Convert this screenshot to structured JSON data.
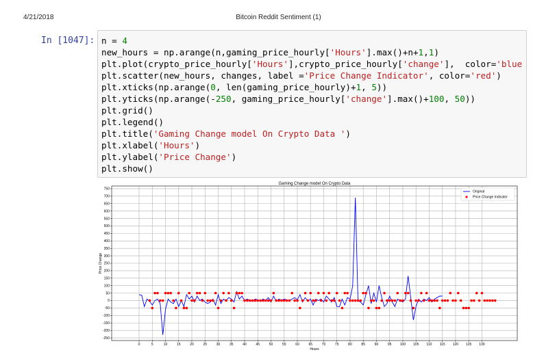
{
  "header": {
    "date": "4/21/2018",
    "title": "Bitcoin Reddit Sentiment (1)"
  },
  "cell": {
    "prompt": "In [1047]:",
    "lines": [
      "n = 4",
      "new_hours = np.arange(n,gaming_price_hourly['Hours'].max()+n+1,1)",
      "plt.plot(crypto_price_hourly['Hours'],crypto_price_hourly['change'],  color='blue",
      "plt.scatter(new_hours, changes, label ='Price Change Indicator', color='red')",
      "plt.xticks(np.arange(0, len(gaming_price_hourly)+1, 5))",
      "plt.yticks(np.arange(-250, gaming_price_hourly['change'].max()+100, 50))",
      "plt.grid()",
      "plt.legend()",
      "plt.title('Gaming Change model On Crypto Data ')",
      "plt.xlabel('Hours')",
      "plt.ylabel('Price Change')",
      "plt.show()"
    ]
  },
  "chart_data": {
    "type": "line",
    "title": "Gaming Change model On Crypto Data",
    "xlabel": "Hours",
    "ylabel": "Price Change",
    "grid": true,
    "legend": "upper right",
    "xlim": [
      -10.4,
      143.4
    ],
    "ylim": [
      -268,
      768
    ],
    "xticks": [
      0,
      5,
      10,
      15,
      20,
      25,
      30,
      35,
      40,
      45,
      50,
      55,
      60,
      65,
      70,
      75,
      80,
      85,
      90,
      95,
      100,
      105,
      110,
      115,
      120,
      125,
      130
    ],
    "yticks": [
      -250,
      -200,
      -150,
      -100,
      -50,
      0,
      50,
      100,
      150,
      200,
      250,
      300,
      350,
      400,
      450,
      500,
      550,
      600,
      650,
      700,
      750
    ],
    "series": [
      {
        "name": "Original",
        "type": "line",
        "color": "#0000ff",
        "x": [
          0,
          1,
          2,
          3,
          4,
          5,
          6,
          7,
          8,
          9,
          10,
          11,
          12,
          13,
          14,
          15,
          16,
          17,
          18,
          19,
          20,
          21,
          22,
          23,
          24,
          25,
          26,
          27,
          28,
          29,
          30,
          31,
          32,
          33,
          34,
          35,
          36,
          37,
          38,
          39,
          40,
          41,
          42,
          43,
          44,
          45,
          46,
          47,
          48,
          49,
          50,
          51,
          52,
          53,
          54,
          55,
          56,
          57,
          58,
          59,
          60,
          61,
          62,
          63,
          64,
          65,
          66,
          67,
          68,
          69,
          70,
          71,
          72,
          73,
          74,
          75,
          76,
          77,
          78,
          79,
          80,
          81,
          82,
          83,
          84,
          85,
          86,
          87,
          88,
          89,
          90,
          91,
          92,
          93,
          94,
          95,
          96,
          97,
          98,
          99,
          100,
          101,
          102,
          103,
          104,
          105,
          106,
          107,
          108,
          109,
          110,
          111,
          112,
          113,
          114,
          115
        ],
        "values": [
          40,
          35,
          -40,
          10,
          -5,
          -30,
          0,
          10,
          -20,
          -230,
          -60,
          10,
          -10,
          -20,
          10,
          -40,
          0,
          -40,
          40,
          10,
          30,
          -10,
          30,
          0,
          10,
          -10,
          -20,
          -10,
          10,
          -30,
          40,
          -20,
          10,
          0,
          20,
          10,
          -10,
          60,
          10,
          30,
          0,
          10,
          0,
          -5,
          10,
          5,
          -5,
          10,
          0,
          20,
          -10,
          30,
          -5,
          10,
          0,
          10,
          5,
          0,
          10,
          20,
          5,
          40,
          -10,
          20,
          -5,
          10,
          -30,
          10,
          0,
          10,
          -10,
          30,
          10,
          -10,
          20,
          -40,
          -40,
          10,
          -30,
          20,
          10,
          100,
          690,
          0,
          -10,
          -30,
          40,
          100,
          -20,
          50,
          -10,
          100,
          20,
          -40,
          -20,
          30,
          -10,
          -40,
          10,
          0,
          -10,
          10,
          165,
          20,
          -130,
          -40,
          10,
          -10,
          10,
          0,
          20,
          -10,
          10,
          20,
          30,
          30
        ]
      },
      {
        "name": "Price Change Indicator",
        "type": "scatter",
        "color": "#ff0000",
        "x": [
          4,
          5,
          6,
          7,
          8,
          9,
          10,
          11,
          12,
          13,
          14,
          15,
          16,
          17,
          18,
          19,
          20,
          21,
          22,
          23,
          24,
          25,
          26,
          27,
          28,
          29,
          30,
          31,
          32,
          33,
          34,
          35,
          36,
          37,
          38,
          39,
          40,
          41,
          42,
          43,
          44,
          45,
          46,
          47,
          48,
          49,
          50,
          51,
          52,
          53,
          54,
          55,
          56,
          57,
          58,
          59,
          60,
          61,
          62,
          63,
          64,
          65,
          66,
          67,
          68,
          69,
          70,
          71,
          72,
          73,
          74,
          75,
          76,
          77,
          78,
          79,
          80,
          81,
          82,
          83,
          84,
          85,
          86,
          87,
          88,
          89,
          90,
          91,
          92,
          93,
          94,
          95,
          96,
          97,
          98,
          99,
          100,
          101,
          102,
          103,
          104,
          105,
          106,
          107,
          108,
          109,
          110,
          111,
          112,
          113,
          114,
          115,
          116,
          117,
          118,
          119,
          120,
          121,
          122,
          123,
          124,
          125,
          126,
          127,
          128,
          129,
          130,
          131,
          132,
          133,
          134,
          135
        ],
        "values": [
          0,
          -50,
          50,
          50,
          0,
          0,
          50,
          50,
          50,
          0,
          -50,
          50,
          0,
          -50,
          -50,
          50,
          0,
          0,
          50,
          50,
          0,
          50,
          0,
          0,
          0,
          50,
          -50,
          0,
          50,
          0,
          50,
          0,
          -50,
          50,
          50,
          50,
          0,
          0,
          0,
          0,
          0,
          0,
          0,
          0,
          0,
          0,
          0,
          50,
          0,
          0,
          0,
          0,
          0,
          0,
          50,
          0,
          0,
          -50,
          0,
          50,
          0,
          50,
          0,
          0,
          50,
          0,
          50,
          0,
          50,
          0,
          0,
          50,
          0,
          -50,
          50,
          50,
          0,
          0,
          0,
          0,
          0,
          50,
          50,
          -50,
          0,
          0,
          -50,
          -50,
          0,
          50,
          0,
          0,
          0,
          0,
          50,
          0,
          0,
          50,
          50,
          0,
          -50,
          0,
          0,
          50,
          0,
          50,
          0,
          0,
          0,
          0,
          -50,
          0,
          0,
          0,
          50,
          0,
          0,
          50,
          0,
          -50,
          -50,
          -50,
          0,
          0,
          50,
          0,
          50,
          0,
          0,
          0,
          0,
          0
        ]
      }
    ]
  }
}
